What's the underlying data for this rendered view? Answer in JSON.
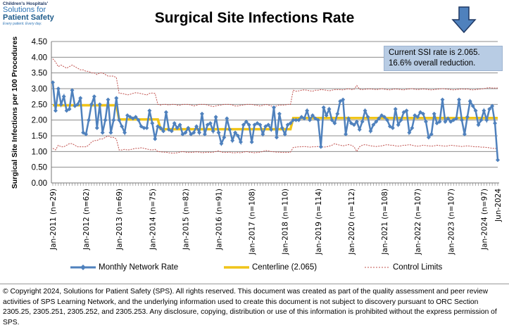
{
  "logo": {
    "line1": "Children's Hospitals'",
    "line2": "Solutions for",
    "line3": "Patient Safety",
    "line4": "Every patient. Every day."
  },
  "annotation": {
    "line1": "Current SSI rate is 2.065.",
    "line2": "16.6% overall reduction.",
    "arrow_icon": "down-arrow-icon",
    "arrow_color": "#4f81bd"
  },
  "footer": "© Copyright 2024, Solutions for Patient Safety (SPS).  All rights reserved.  This document was created as part of the quality assessment and peer review activities of SPS Learning Network, and the underlying information used to create this document is not subject to discovery pursuant to ORC Section 2305.25, 2305.251, 2305.252, and 2305.253. Any disclosure, copying, distribution or use of this information is prohibited without the express permission of SPS.",
  "chart_data": {
    "type": "line",
    "title": "Surgical Site Infections Rate",
    "ylabel": "Surgical Site Infections  per 100 Procedures",
    "xlabel": "",
    "ylim": [
      0,
      4.5
    ],
    "yticks": [
      "0.00",
      "0.50",
      "1.00",
      "1.50",
      "2.00",
      "2.50",
      "3.00",
      "3.50",
      "4.00",
      "4.50"
    ],
    "grid": true,
    "legend_placement": "bottom",
    "start_month": "Jan-2011",
    "end_month": "Jun-2024",
    "xtick_labels": [
      {
        "month": "Jan-2011",
        "label": "Jan-2011 (n=29)"
      },
      {
        "month": "Jan-2012",
        "label": "Jan-2012 (n=62)"
      },
      {
        "month": "Jan-2013",
        "label": "Jan-2013 (n=69)"
      },
      {
        "month": "Jan-2014",
        "label": "Jan-2014 (n=75)"
      },
      {
        "month": "Jan-2015",
        "label": "Jan-2015 (n=82)"
      },
      {
        "month": "Jan-2016",
        "label": "Jan-2016 (n=91)"
      },
      {
        "month": "Jan-2017",
        "label": "Jan-2017 (n=108)"
      },
      {
        "month": "Jan-2018",
        "label": "Jan-2018 (n=110)"
      },
      {
        "month": "Jan-2019",
        "label": "Jan-2019 (n=114)"
      },
      {
        "month": "Jan-2020",
        "label": "Jan-2020 (n=112)"
      },
      {
        "month": "Jan-2021",
        "label": "Jan-2021 (n=108)"
      },
      {
        "month": "Jan-2022",
        "label": "Jan-2022 (n=107)"
      },
      {
        "month": "Jan-2023",
        "label": "Jan-2023 (n=107)"
      },
      {
        "month": "Jan-2024",
        "label": "Jan-2024 (n=97)"
      },
      {
        "month": "Jun-2024",
        "label": "Jun-2024"
      }
    ],
    "series": [
      {
        "name": "Monthly Network Rate",
        "color": "#4f81bd",
        "values": [
          3.2,
          2.3,
          3.0,
          2.5,
          2.75,
          2.3,
          2.35,
          2.95,
          2.45,
          2.5,
          2.7,
          1.6,
          1.55,
          2.0,
          2.5,
          2.75,
          1.75,
          2.5,
          1.6,
          2.0,
          2.65,
          1.6,
          2.0,
          2.7,
          2.0,
          1.8,
          1.6,
          2.15,
          2.1,
          2.05,
          2.1,
          2.0,
          1.8,
          1.75,
          1.75,
          2.3,
          1.9,
          1.4,
          1.8,
          1.75,
          1.65,
          2.25,
          1.7,
          1.65,
          1.9,
          1.75,
          1.85,
          1.55,
          1.6,
          1.75,
          1.55,
          1.6,
          1.8,
          1.6,
          2.2,
          1.55,
          1.85,
          1.9,
          1.65,
          2.1,
          1.6,
          1.25,
          1.45,
          2.05,
          1.7,
          1.35,
          1.6,
          1.5,
          1.3,
          1.85,
          1.95,
          1.85,
          1.3,
          1.85,
          1.9,
          1.85,
          1.55,
          1.8,
          1.85,
          1.7,
          2.4,
          1.45,
          2.2,
          1.75,
          1.55,
          1.85,
          1.9,
          2.0,
          2.0,
          2.0,
          2.1,
          2.05,
          2.3,
          2.0,
          2.15,
          2.05,
          2.0,
          1.15,
          2.4,
          2.15,
          2.35,
          2.0,
          1.9,
          2.2,
          2.6,
          2.65,
          1.55,
          2.05,
          1.9,
          1.85,
          1.95,
          1.7,
          1.95,
          2.3,
          2.1,
          1.65,
          1.85,
          1.95,
          2.05,
          2.15,
          2.1,
          2.0,
          1.8,
          1.75,
          2.35,
          1.85,
          2.0,
          2.25,
          2.3,
          1.6,
          1.75,
          2.15,
          2.1,
          2.25,
          2.2,
          1.95,
          1.45,
          1.55,
          2.2,
          1.9,
          1.95,
          2.65,
          1.95,
          2.05,
          1.95,
          2.0,
          2.05,
          2.65,
          2.0,
          1.55,
          2.1,
          2.6,
          2.45,
          2.3,
          1.85,
          2.0,
          2.3,
          2.0,
          2.35,
          2.45,
          1.9,
          0.73
        ]
      },
      {
        "name": "Centerline (2.065)",
        "color": "#f0c419",
        "segments": [
          {
            "from": "Jan-2011",
            "to": "Dec-2012",
            "value": 2.47
          },
          {
            "from": "Jan-2013",
            "to": "Mar-2014",
            "value": 2.02
          },
          {
            "from": "Apr-2014",
            "to": "Mar-2018",
            "value": 1.71
          },
          {
            "from": "Apr-2018",
            "to": "Jun-2024",
            "value": 2.065
          }
        ]
      },
      {
        "name": "Control Limits",
        "color": "#c0504d",
        "upper": [
          3.95,
          3.85,
          3.7,
          3.75,
          3.7,
          3.65,
          3.7,
          3.75,
          3.7,
          3.65,
          3.6,
          3.6,
          3.55,
          3.55,
          3.5,
          3.5,
          3.45,
          3.5,
          3.5,
          3.45,
          3.4,
          3.4,
          3.4,
          3.35,
          2.85,
          2.85,
          2.83,
          2.8,
          2.82,
          2.85,
          2.87,
          2.86,
          2.84,
          2.82,
          2.8,
          2.85,
          2.86,
          2.85,
          2.5,
          2.48,
          2.5,
          2.5,
          2.48,
          2.5,
          2.5,
          2.48,
          2.47,
          2.5,
          2.5,
          2.5,
          2.48,
          2.45,
          2.47,
          2.5,
          2.5,
          2.5,
          2.48,
          2.45,
          2.43,
          2.45,
          2.47,
          2.48,
          2.5,
          2.5,
          2.5,
          2.48,
          2.45,
          2.45,
          2.47,
          2.48,
          2.5,
          2.5,
          2.5,
          2.48,
          2.47,
          2.45,
          2.47,
          2.5,
          2.48,
          2.45,
          2.43,
          2.45,
          2.48,
          2.48,
          2.48,
          2.5,
          2.5,
          2.95,
          2.92,
          2.93,
          2.95,
          2.96,
          2.95,
          2.93,
          2.92,
          2.95,
          2.95,
          2.97,
          2.96,
          2.95,
          2.93,
          2.95,
          2.97,
          2.97,
          2.97,
          2.96,
          2.98,
          3.0,
          2.97,
          2.98,
          3.1,
          2.98,
          2.97,
          2.98,
          2.99,
          2.99,
          2.98,
          2.97,
          2.98,
          3.0,
          2.98,
          2.97,
          2.96,
          2.98,
          2.99,
          2.98,
          2.97,
          2.96,
          2.98,
          2.99,
          3.0,
          2.98,
          2.97,
          2.98,
          2.99,
          2.98,
          2.97,
          2.96,
          2.97,
          2.98,
          2.99,
          3.0,
          2.99,
          2.98,
          2.97,
          2.96,
          2.97,
          2.98,
          2.99,
          2.98,
          2.99,
          2.97,
          2.96,
          2.97,
          2.98,
          2.99,
          3.0,
          3.02,
          3.03,
          3.02,
          3.02,
          3.02
        ],
        "lower": [
          1.1,
          1.05,
          1.2,
          1.15,
          1.15,
          1.2,
          1.25,
          1.25,
          1.2,
          1.15,
          1.15,
          1.15,
          1.15,
          1.2,
          1.3,
          1.35,
          1.35,
          1.4,
          1.4,
          1.45,
          1.5,
          1.45,
          1.45,
          1.4,
          1.05,
          1.05,
          1.07,
          1.05,
          1.06,
          1.08,
          1.1,
          1.1,
          1.12,
          1.1,
          1.08,
          1.06,
          1.05,
          1.07,
          1.0,
          0.99,
          0.98,
          0.98,
          0.96,
          0.95,
          0.95,
          0.96,
          0.98,
          1.0,
          0.98,
          0.97,
          0.97,
          0.98,
          0.99,
          0.98,
          0.96,
          0.97,
          0.98,
          0.97,
          0.98,
          1.0,
          1.02,
          0.98,
          0.97,
          0.97,
          0.98,
          0.96,
          0.96,
          0.97,
          0.96,
          0.98,
          1.0,
          0.98,
          0.97,
          0.96,
          0.97,
          0.98,
          1.0,
          1.03,
          1.02,
          1.0,
          0.99,
          0.98,
          0.98,
          0.97,
          0.97,
          0.97,
          0.98,
          1.13,
          1.14,
          1.15,
          1.15,
          1.16,
          1.15,
          1.14,
          1.15,
          1.15,
          1.16,
          1.15,
          1.14,
          1.15,
          1.17,
          1.2,
          1.25,
          1.22,
          1.2,
          1.18,
          1.2,
          1.22,
          1.2,
          1.15,
          1.0,
          1.15,
          1.2,
          1.22,
          1.2,
          1.18,
          1.17,
          1.16,
          1.17,
          1.18,
          1.2,
          1.22,
          1.2,
          1.2,
          1.18,
          1.17,
          1.18,
          1.2,
          1.2,
          1.22,
          1.2,
          1.18,
          1.17,
          1.18,
          1.2,
          1.19,
          1.18,
          1.17,
          1.18,
          1.2,
          1.19,
          1.18,
          1.17,
          1.18,
          1.2,
          1.19,
          1.18,
          1.17,
          1.16,
          1.17,
          1.18,
          1.17,
          1.16,
          1.15,
          1.15,
          1.14,
          1.14,
          1.13,
          1.12,
          1.1,
          1.1,
          1.09
        ]
      }
    ]
  }
}
